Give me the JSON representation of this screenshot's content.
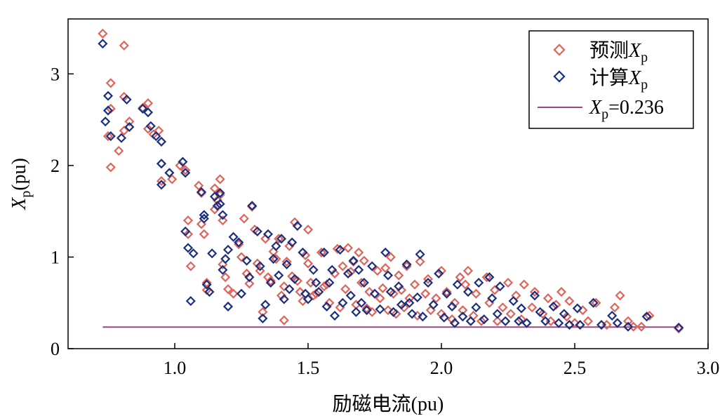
{
  "chart_data": {
    "type": "scatter",
    "xlabel": "励磁电流(pu)",
    "ylabel_var": "X",
    "ylabel_sub": "p",
    "ylabel_unit": "(pu)",
    "xlim": [
      0.6,
      3.0
    ],
    "ylim": [
      0,
      3.6
    ],
    "xticks": [
      1.0,
      1.5,
      2.0,
      2.5,
      3.0
    ],
    "xtick_labels": [
      "1.0",
      "1.5",
      "2.0",
      "2.5",
      "3.0"
    ],
    "yticks": [
      0,
      1,
      2,
      3
    ],
    "ytick_labels": [
      "0",
      "1",
      "2",
      "3"
    ],
    "grid": false,
    "legend_position": "top-right",
    "colors": {
      "predicted": "#e0645a",
      "calculated": "#1a2f80",
      "threshold": "#a0457a"
    },
    "legend": {
      "predicted": {
        "prefix": "预测",
        "var": "X",
        "sub": "p"
      },
      "calculated": {
        "prefix": "计算",
        "var": "X",
        "sub": "p"
      },
      "threshold": {
        "var": "X",
        "sub": "p",
        "suffix": "=0.236"
      }
    },
    "threshold": {
      "y": 0.236,
      "x_range": [
        0.73,
        2.89
      ]
    },
    "series": [
      {
        "name": "预测Xp",
        "marker": "diamond",
        "points": [
          [
            0.73,
            3.44
          ],
          [
            0.75,
            2.32
          ],
          [
            0.76,
            2.9
          ],
          [
            0.76,
            2.62
          ],
          [
            0.76,
            1.98
          ],
          [
            0.79,
            2.16
          ],
          [
            0.81,
            3.31
          ],
          [
            0.81,
            2.75
          ],
          [
            0.81,
            2.38
          ],
          [
            0.83,
            2.48
          ],
          [
            0.88,
            2.63
          ],
          [
            0.9,
            2.68
          ],
          [
            0.9,
            2.4
          ],
          [
            0.92,
            2.34
          ],
          [
            0.94,
            2.38
          ],
          [
            0.95,
            2.02
          ],
          [
            0.95,
            1.83
          ],
          [
            0.99,
            1.85
          ],
          [
            1.02,
            2.0
          ],
          [
            1.04,
            1.95
          ],
          [
            1.05,
            1.4
          ],
          [
            1.05,
            1.25
          ],
          [
            1.06,
            0.9
          ],
          [
            1.09,
            1.78
          ],
          [
            1.1,
            1.7
          ],
          [
            1.1,
            1.36
          ],
          [
            1.11,
            1.25
          ],
          [
            1.12,
            0.72
          ],
          [
            1.12,
            0.64
          ],
          [
            1.15,
            1.75
          ],
          [
            1.15,
            1.52
          ],
          [
            1.16,
            1.62
          ],
          [
            1.17,
            1.85
          ],
          [
            1.17,
            1.68
          ],
          [
            1.18,
            1.4
          ],
          [
            1.18,
            0.92
          ],
          [
            1.19,
            0.78
          ],
          [
            1.2,
            0.65
          ],
          [
            1.22,
            0.6
          ],
          [
            1.24,
            1.14
          ],
          [
            1.25,
            1.0
          ],
          [
            1.26,
            1.42
          ],
          [
            1.27,
            0.82
          ],
          [
            1.28,
            0.71
          ],
          [
            1.29,
            1.55
          ],
          [
            1.3,
            1.3
          ],
          [
            1.31,
            0.93
          ],
          [
            1.32,
            0.85
          ],
          [
            1.33,
            0.4
          ],
          [
            1.34,
            1.2
          ],
          [
            1.35,
            0.78
          ],
          [
            1.36,
            0.74
          ],
          [
            1.37,
            1.06
          ],
          [
            1.38,
            0.98
          ],
          [
            1.39,
            1.2
          ],
          [
            1.4,
            0.58
          ],
          [
            1.41,
            0.31
          ],
          [
            1.41,
            0.68
          ],
          [
            1.42,
            0.95
          ],
          [
            1.43,
            1.12
          ],
          [
            1.44,
            0.79
          ],
          [
            1.45,
            1.38
          ],
          [
            1.46,
            0.74
          ],
          [
            1.47,
            0.62
          ],
          [
            1.48,
            0.52
          ],
          [
            1.49,
            1.02
          ],
          [
            1.5,
            0.93
          ],
          [
            1.5,
            1.3
          ],
          [
            1.51,
            0.72
          ],
          [
            1.52,
            0.58
          ],
          [
            1.53,
            0.6
          ],
          [
            1.55,
            1.05
          ],
          [
            1.56,
            0.68
          ],
          [
            1.57,
            0.7
          ],
          [
            1.58,
            0.5
          ],
          [
            1.6,
            0.82
          ],
          [
            1.61,
            1.09
          ],
          [
            1.62,
            0.45
          ],
          [
            1.63,
            0.9
          ],
          [
            1.64,
            0.65
          ],
          [
            1.65,
            1.1
          ],
          [
            1.66,
            0.84
          ],
          [
            1.67,
            0.95
          ],
          [
            1.68,
            0.48
          ],
          [
            1.69,
            1.05
          ],
          [
            1.7,
            0.72
          ],
          [
            1.71,
            0.96
          ],
          [
            1.72,
            0.44
          ],
          [
            1.73,
            0.62
          ],
          [
            1.74,
            0.4
          ],
          [
            1.76,
            0.85
          ],
          [
            1.77,
            0.55
          ],
          [
            1.78,
            0.66
          ],
          [
            1.79,
            0.88
          ],
          [
            1.8,
            0.42
          ],
          [
            1.81,
            1.0
          ],
          [
            1.82,
            0.6
          ],
          [
            1.83,
            0.38
          ],
          [
            1.84,
            0.8
          ],
          [
            1.85,
            0.64
          ],
          [
            1.86,
            0.45
          ],
          [
            1.87,
            0.9
          ],
          [
            1.88,
            0.55
          ],
          [
            1.9,
            0.7
          ],
          [
            1.91,
            0.36
          ],
          [
            1.92,
            0.95
          ],
          [
            1.94,
            0.6
          ],
          [
            1.95,
            0.76
          ],
          [
            1.96,
            0.42
          ],
          [
            1.98,
            0.55
          ],
          [
            2.0,
            0.85
          ],
          [
            2.0,
            0.38
          ],
          [
            2.02,
            0.62
          ],
          [
            2.04,
            0.32
          ],
          [
            2.05,
            0.5
          ],
          [
            2.07,
            0.78
          ],
          [
            2.08,
            0.42
          ],
          [
            2.09,
            0.7
          ],
          [
            2.1,
            0.85
          ],
          [
            2.12,
            0.36
          ],
          [
            2.13,
            0.6
          ],
          [
            2.15,
            0.3
          ],
          [
            2.17,
            0.78
          ],
          [
            2.18,
            0.5
          ],
          [
            2.2,
            0.64
          ],
          [
            2.21,
            0.3
          ],
          [
            2.23,
            0.45
          ],
          [
            2.25,
            0.72
          ],
          [
            2.26,
            0.38
          ],
          [
            2.28,
            0.58
          ],
          [
            2.3,
            0.32
          ],
          [
            2.31,
            0.7
          ],
          [
            2.34,
            0.45
          ],
          [
            2.35,
            0.62
          ],
          [
            2.38,
            0.38
          ],
          [
            2.4,
            0.55
          ],
          [
            2.41,
            0.3
          ],
          [
            2.43,
            0.48
          ],
          [
            2.45,
            0.62
          ],
          [
            2.47,
            0.35
          ],
          [
            2.48,
            0.52
          ],
          [
            2.5,
            0.28
          ],
          [
            2.53,
            0.42
          ],
          [
            2.55,
            0.3
          ],
          [
            2.58,
            0.5
          ],
          [
            2.62,
            0.26
          ],
          [
            2.65,
            0.45
          ],
          [
            2.67,
            0.58
          ],
          [
            2.7,
            0.3
          ],
          [
            2.72,
            0.24
          ],
          [
            2.75,
            0.24
          ],
          [
            2.78,
            0.36
          ],
          [
            2.89,
            0.22
          ]
        ]
      },
      {
        "name": "计算Xp",
        "marker": "diamond",
        "points": [
          [
            0.73,
            3.33
          ],
          [
            0.74,
            2.48
          ],
          [
            0.75,
            2.76
          ],
          [
            0.75,
            2.6
          ],
          [
            0.76,
            2.32
          ],
          [
            0.8,
            2.3
          ],
          [
            0.82,
            2.72
          ],
          [
            0.83,
            2.42
          ],
          [
            0.88,
            2.62
          ],
          [
            0.9,
            2.58
          ],
          [
            0.91,
            2.43
          ],
          [
            0.93,
            2.32
          ],
          [
            0.95,
            2.26
          ],
          [
            0.95,
            2.02
          ],
          [
            0.95,
            1.79
          ],
          [
            0.98,
            1.92
          ],
          [
            1.03,
            2.04
          ],
          [
            1.04,
            1.92
          ],
          [
            1.04,
            1.28
          ],
          [
            1.05,
            1.1
          ],
          [
            1.06,
            0.52
          ],
          [
            1.07,
            1.04
          ],
          [
            1.1,
            1.71
          ],
          [
            1.11,
            1.46
          ],
          [
            1.11,
            1.42
          ],
          [
            1.12,
            0.7
          ],
          [
            1.13,
            0.62
          ],
          [
            1.14,
            1.04
          ],
          [
            1.15,
            1.66
          ],
          [
            1.16,
            1.56
          ],
          [
            1.17,
            1.58
          ],
          [
            1.17,
            1.7
          ],
          [
            1.18,
            1.46
          ],
          [
            1.18,
            0.86
          ],
          [
            1.19,
            0.98
          ],
          [
            1.2,
            1.08
          ],
          [
            1.2,
            0.46
          ],
          [
            1.22,
            1.22
          ],
          [
            1.24,
            1.16
          ],
          [
            1.25,
            0.6
          ],
          [
            1.27,
            0.96
          ],
          [
            1.28,
            0.78
          ],
          [
            1.29,
            1.56
          ],
          [
            1.31,
            1.28
          ],
          [
            1.32,
            0.9
          ],
          [
            1.33,
            0.33
          ],
          [
            1.34,
            0.48
          ],
          [
            1.35,
            1.25
          ],
          [
            1.36,
            0.72
          ],
          [
            1.37,
            0.98
          ],
          [
            1.38,
            1.12
          ],
          [
            1.39,
            0.8
          ],
          [
            1.4,
            1.2
          ],
          [
            1.41,
            0.54
          ],
          [
            1.42,
            0.92
          ],
          [
            1.43,
            0.65
          ],
          [
            1.44,
            1.16
          ],
          [
            1.45,
            0.76
          ],
          [
            1.46,
            1.34
          ],
          [
            1.48,
            1.05
          ],
          [
            1.49,
            0.6
          ],
          [
            1.5,
            0.54
          ],
          [
            1.52,
            0.86
          ],
          [
            1.53,
            0.72
          ],
          [
            1.54,
            0.62
          ],
          [
            1.56,
            1.05
          ],
          [
            1.57,
            0.46
          ],
          [
            1.58,
            0.72
          ],
          [
            1.59,
            0.86
          ],
          [
            1.6,
            0.36
          ],
          [
            1.62,
            1.08
          ],
          [
            1.63,
            0.5
          ],
          [
            1.65,
            0.82
          ],
          [
            1.66,
            0.58
          ],
          [
            1.67,
            0.96
          ],
          [
            1.68,
            0.4
          ],
          [
            1.69,
            0.86
          ],
          [
            1.7,
            0.5
          ],
          [
            1.71,
            0.72
          ],
          [
            1.72,
            0.42
          ],
          [
            1.74,
            0.9
          ],
          [
            1.75,
            0.6
          ],
          [
            1.77,
            0.43
          ],
          [
            1.79,
            1.05
          ],
          [
            1.8,
            0.8
          ],
          [
            1.81,
            0.62
          ],
          [
            1.82,
            0.4
          ],
          [
            1.84,
            0.68
          ],
          [
            1.85,
            0.48
          ],
          [
            1.87,
            0.92
          ],
          [
            1.88,
            0.5
          ],
          [
            1.89,
            0.38
          ],
          [
            1.91,
            0.56
          ],
          [
            1.92,
            1.03
          ],
          [
            1.93,
            0.35
          ],
          [
            1.95,
            0.72
          ],
          [
            1.97,
            0.48
          ],
          [
            1.99,
            0.82
          ],
          [
            2.01,
            0.34
          ],
          [
            2.02,
            0.6
          ],
          [
            2.04,
            0.46
          ],
          [
            2.05,
            0.28
          ],
          [
            2.06,
            0.7
          ],
          [
            2.08,
            0.35
          ],
          [
            2.1,
            0.62
          ],
          [
            2.11,
            0.3
          ],
          [
            2.13,
            0.45
          ],
          [
            2.14,
            0.72
          ],
          [
            2.16,
            0.32
          ],
          [
            2.18,
            0.78
          ],
          [
            2.19,
            0.55
          ],
          [
            2.21,
            0.38
          ],
          [
            2.22,
            0.68
          ],
          [
            2.24,
            0.3
          ],
          [
            2.27,
            0.52
          ],
          [
            2.29,
            0.3
          ],
          [
            2.3,
            0.44
          ],
          [
            2.32,
            0.28
          ],
          [
            2.35,
            0.58
          ],
          [
            2.37,
            0.4
          ],
          [
            2.39,
            0.3
          ],
          [
            2.42,
            0.46
          ],
          [
            2.44,
            0.28
          ],
          [
            2.46,
            0.38
          ],
          [
            2.48,
            0.26
          ],
          [
            2.51,
            0.44
          ],
          [
            2.52,
            0.26
          ],
          [
            2.57,
            0.5
          ],
          [
            2.6,
            0.26
          ],
          [
            2.64,
            0.36
          ],
          [
            2.66,
            0.28
          ],
          [
            2.7,
            0.24
          ],
          [
            2.77,
            0.35
          ],
          [
            2.89,
            0.23
          ]
        ]
      }
    ]
  }
}
